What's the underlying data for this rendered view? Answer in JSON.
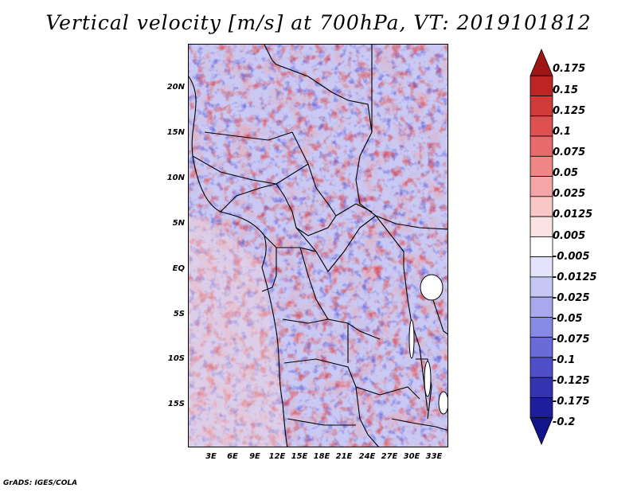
{
  "title": "Vertical velocity [m/s] at 700hPa, VT: 2019101812",
  "footer": "GrADS: IGES/COLA",
  "map": {
    "lat_labels": [
      "20N",
      "15N",
      "10N",
      "5N",
      "EQ",
      "5S",
      "10S",
      "15S"
    ],
    "lon_labels": [
      "3E",
      "6E",
      "9E",
      "12E",
      "15E",
      "18E",
      "21E",
      "24E",
      "27E",
      "30E",
      "33E"
    ]
  },
  "colorbar": {
    "labels": [
      "0.175",
      "0.15",
      "0.125",
      "0.1",
      "0.075",
      "0.05",
      "0.025",
      "0.0125",
      "0.005",
      "-0.005",
      "-0.0125",
      "-0.025",
      "-0.05",
      "-0.075",
      "-0.1",
      "-0.125",
      "-0.175",
      "-0.2"
    ],
    "colors": [
      "#a01515",
      "#bf2424",
      "#d23a3a",
      "#e05050",
      "#e86a6a",
      "#ef8787",
      "#f5a5a5",
      "#f9c7c7",
      "#fce3e3",
      "#ffffff",
      "#e3e3fc",
      "#c7c7f5",
      "#a8a8ee",
      "#8888e5",
      "#6a6ad8",
      "#4f4fc8",
      "#3434b3",
      "#1e1e9c",
      "#14148a"
    ]
  }
}
